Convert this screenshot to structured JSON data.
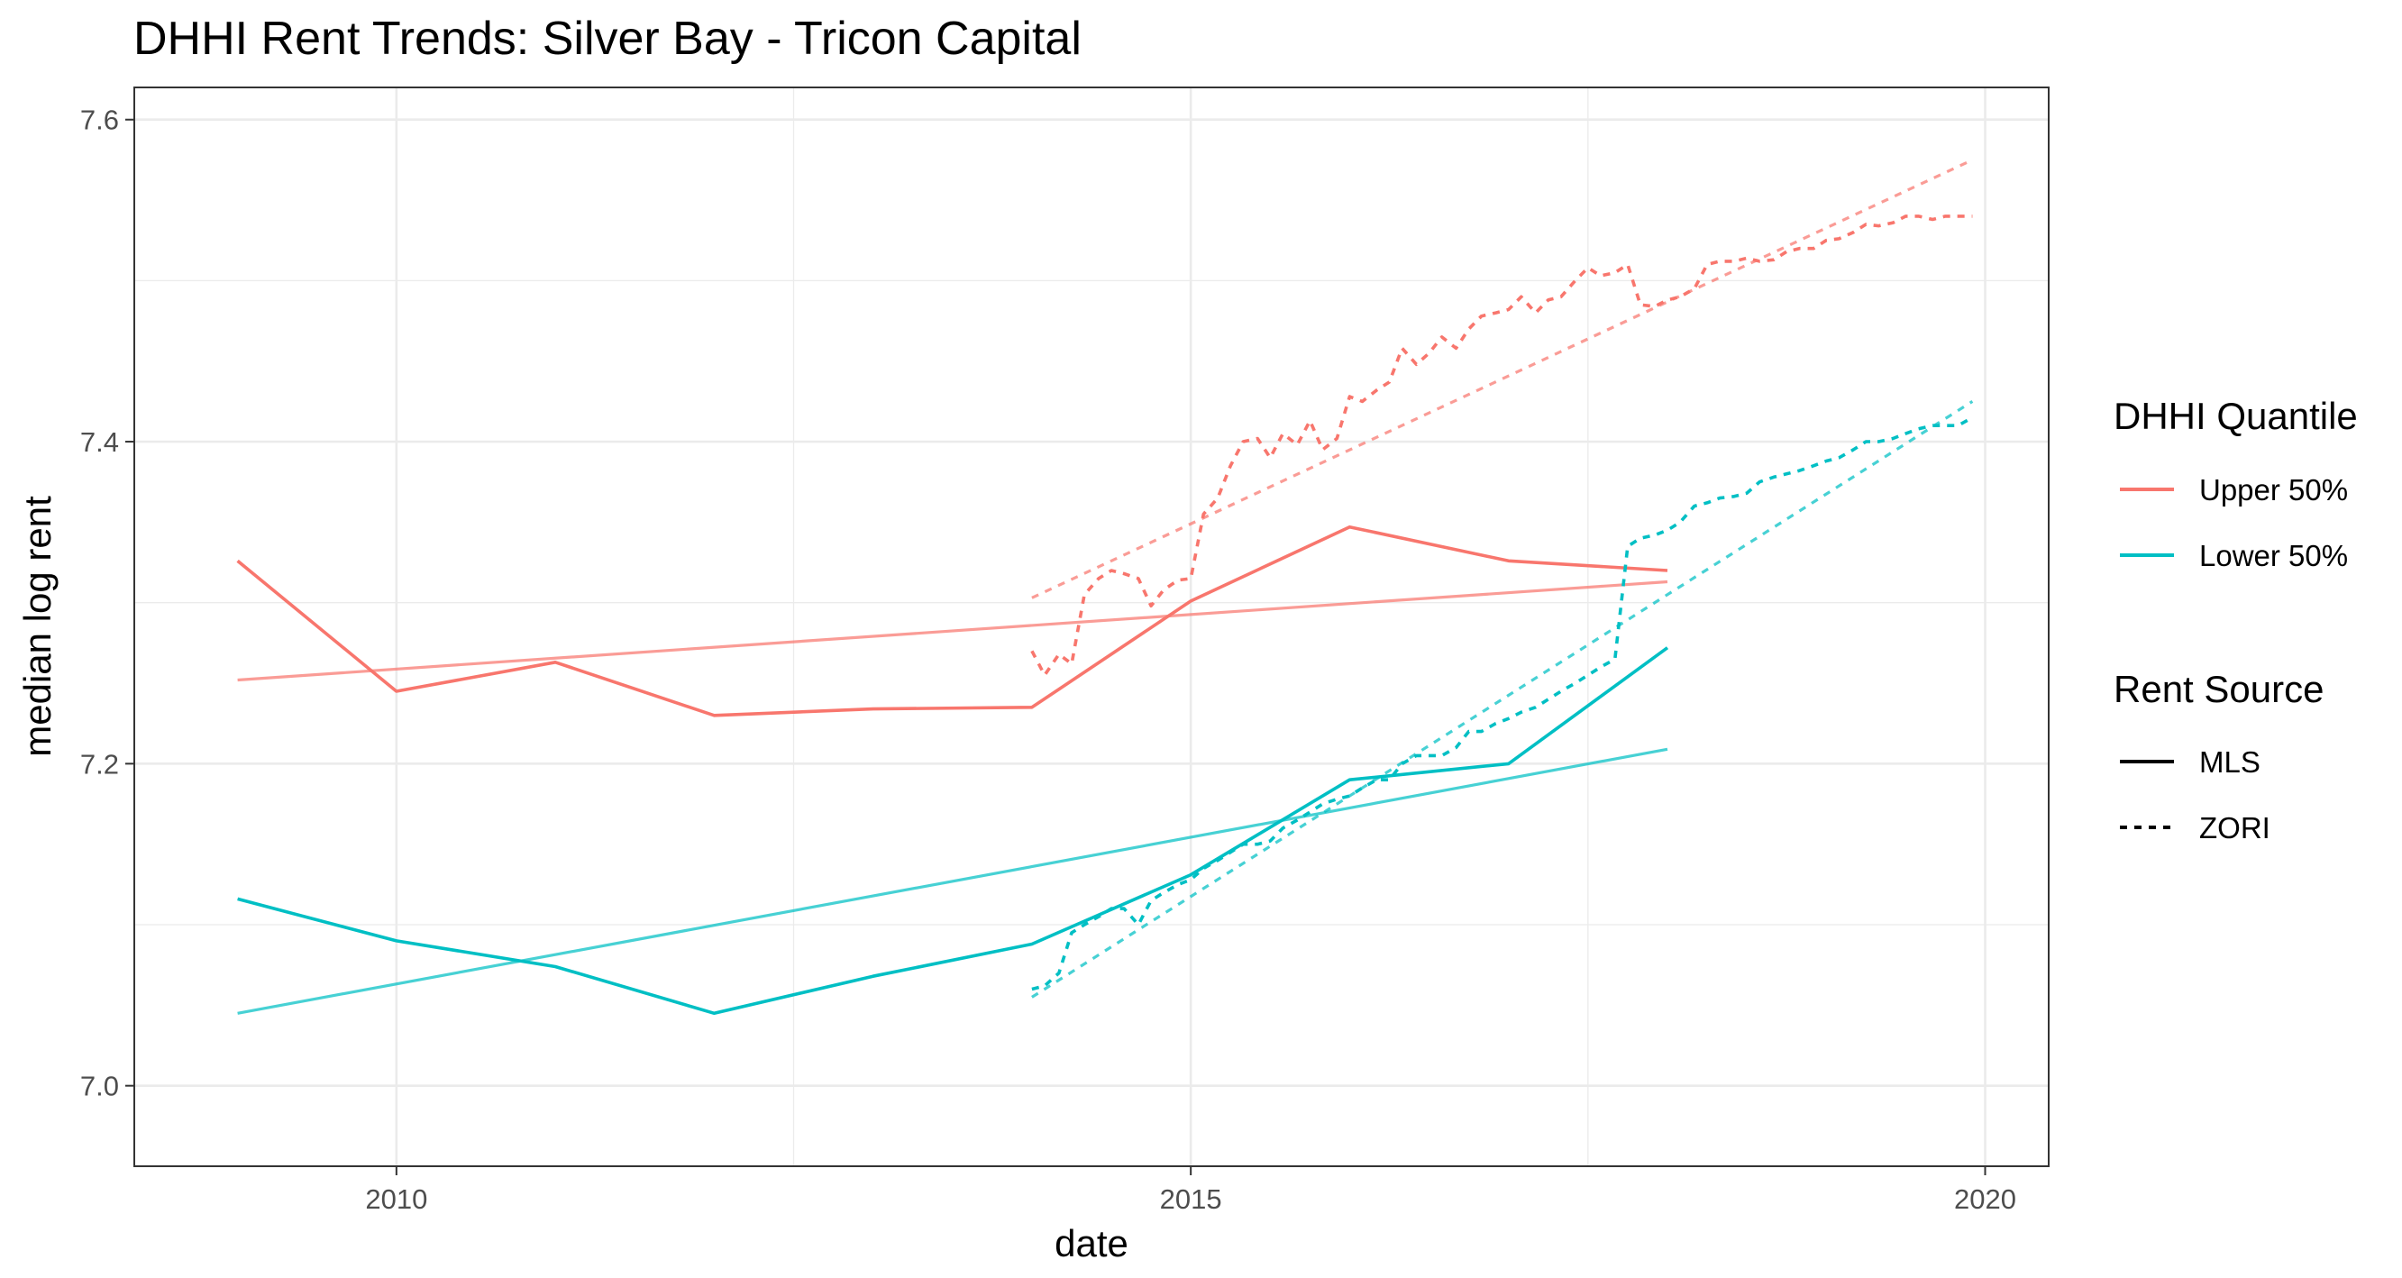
{
  "chart_data": {
    "type": "line",
    "title": "DHHI Rent Trends: Silver Bay - Tricon Capital",
    "xlabel": "date",
    "ylabel": "median log rent",
    "xlim": [
      2008.35,
      2020.4
    ],
    "ylim": [
      6.95,
      7.62
    ],
    "x_ticks": [
      2010,
      2015,
      2020
    ],
    "x_tick_labels": [
      "2010",
      "2015",
      "2020"
    ],
    "y_ticks": [
      7.0,
      7.2,
      7.4,
      7.6
    ],
    "y_tick_labels": [
      "7.0",
      "7.2",
      "7.4",
      "7.6"
    ],
    "grid": true,
    "legend_position": "right",
    "legends": [
      {
        "title": "DHHI Quantile",
        "entries": [
          {
            "label": "Upper 50%",
            "color": "#F8766D"
          },
          {
            "label": "Lower 50%",
            "color": "#00BFC4"
          }
        ]
      },
      {
        "title": "Rent Source",
        "entries": [
          {
            "label": "MLS",
            "linetype": "solid"
          },
          {
            "label": "ZORI",
            "linetype": "dashed"
          }
        ]
      }
    ],
    "series": [
      {
        "quantile": "Upper 50%",
        "source": "MLS",
        "color": "#F8766D",
        "x": [
          2009,
          2010,
          2011,
          2012,
          2013,
          2014,
          2015,
          2016,
          2017,
          2018
        ],
        "y": [
          7.326,
          7.245,
          7.263,
          7.23,
          7.234,
          7.235,
          7.301,
          7.347,
          7.326,
          7.32
        ]
      },
      {
        "quantile": "Lower 50%",
        "source": "MLS",
        "color": "#00BFC4",
        "x": [
          2009,
          2010,
          2011,
          2012,
          2013,
          2014,
          2015,
          2016,
          2017,
          2018
        ],
        "y": [
          7.116,
          7.09,
          7.074,
          7.045,
          7.068,
          7.088,
          7.131,
          7.19,
          7.2,
          7.272
        ]
      },
      {
        "quantile": "Upper 50%",
        "source": "ZORI",
        "color": "#F8766D",
        "x": [
          2014.0,
          2014.08,
          2014.17,
          2014.25,
          2014.33,
          2014.42,
          2014.5,
          2014.58,
          2014.67,
          2014.75,
          2014.83,
          2014.92,
          2015.0,
          2015.08,
          2015.17,
          2015.25,
          2015.33,
          2015.42,
          2015.5,
          2015.58,
          2015.67,
          2015.75,
          2015.83,
          2015.92,
          2016.0,
          2016.08,
          2016.17,
          2016.25,
          2016.33,
          2016.42,
          2016.5,
          2016.58,
          2016.67,
          2016.75,
          2016.83,
          2016.92,
          2017.0,
          2017.08,
          2017.17,
          2017.25,
          2017.33,
          2017.42,
          2017.5,
          2017.58,
          2017.67,
          2017.75,
          2017.83,
          2017.92,
          2018.0,
          2018.08,
          2018.17,
          2018.25,
          2018.33,
          2018.42,
          2018.5,
          2018.58,
          2018.67,
          2018.75,
          2018.83,
          2018.92,
          2019.0,
          2019.08,
          2019.17,
          2019.25,
          2019.33,
          2019.42,
          2019.5,
          2019.58,
          2019.67,
          2019.75,
          2019.83,
          2019.92
        ],
        "y": [
          7.27,
          7.255,
          7.268,
          7.262,
          7.305,
          7.315,
          7.32,
          7.318,
          7.315,
          7.298,
          7.308,
          7.314,
          7.315,
          7.355,
          7.365,
          7.385,
          7.4,
          7.402,
          7.39,
          7.405,
          7.398,
          7.413,
          7.395,
          7.402,
          7.428,
          7.425,
          7.432,
          7.437,
          7.458,
          7.448,
          7.455,
          7.465,
          7.458,
          7.47,
          7.478,
          7.48,
          7.482,
          7.49,
          7.48,
          7.488,
          7.49,
          7.5,
          7.508,
          7.503,
          7.505,
          7.51,
          7.485,
          7.484,
          7.488,
          7.49,
          7.495,
          7.51,
          7.512,
          7.512,
          7.514,
          7.512,
          7.513,
          7.518,
          7.52,
          7.52,
          7.525,
          7.526,
          7.53,
          7.535,
          7.534,
          7.536,
          7.54,
          7.54,
          7.538,
          7.54,
          7.54,
          7.54
        ]
      },
      {
        "quantile": "Lower 50%",
        "source": "ZORI",
        "color": "#00BFC4",
        "x": [
          2014.0,
          2014.08,
          2014.17,
          2014.25,
          2014.33,
          2014.42,
          2014.5,
          2014.58,
          2014.67,
          2014.75,
          2014.83,
          2014.92,
          2015.0,
          2015.08,
          2015.17,
          2015.25,
          2015.33,
          2015.42,
          2015.5,
          2015.58,
          2015.67,
          2015.75,
          2015.83,
          2015.92,
          2016.0,
          2016.08,
          2016.17,
          2016.25,
          2016.33,
          2016.42,
          2016.5,
          2016.58,
          2016.67,
          2016.75,
          2016.83,
          2016.92,
          2017.0,
          2017.08,
          2017.17,
          2017.25,
          2017.33,
          2017.42,
          2017.5,
          2017.58,
          2017.67,
          2017.75,
          2017.83,
          2017.92,
          2018.0,
          2018.08,
          2018.17,
          2018.25,
          2018.33,
          2018.42,
          2018.5,
          2018.58,
          2018.67,
          2018.75,
          2018.83,
          2018.92,
          2019.0,
          2019.08,
          2019.17,
          2019.25,
          2019.33,
          2019.42,
          2019.5,
          2019.58,
          2019.67,
          2019.75,
          2019.83,
          2019.92
        ],
        "y": [
          7.06,
          7.062,
          7.07,
          7.095,
          7.1,
          7.105,
          7.11,
          7.11,
          7.1,
          7.115,
          7.12,
          7.125,
          7.128,
          7.135,
          7.14,
          7.145,
          7.15,
          7.15,
          7.152,
          7.16,
          7.165,
          7.17,
          7.175,
          7.178,
          7.18,
          7.185,
          7.19,
          7.19,
          7.2,
          7.205,
          7.205,
          7.205,
          7.21,
          7.22,
          7.22,
          7.225,
          7.228,
          7.232,
          7.235,
          7.24,
          7.245,
          7.25,
          7.255,
          7.26,
          7.265,
          7.335,
          7.34,
          7.342,
          7.345,
          7.35,
          7.36,
          7.362,
          7.365,
          7.366,
          7.368,
          7.375,
          7.378,
          7.38,
          7.382,
          7.385,
          7.388,
          7.39,
          7.395,
          7.4,
          7.4,
          7.402,
          7.405,
          7.408,
          7.41,
          7.41,
          7.41,
          7.415
        ]
      },
      {
        "quantile": "Upper 50%",
        "source": "MLS",
        "kind": "trend",
        "color": "#F8766D",
        "x": [
          2009,
          2018
        ],
        "y": [
          7.252,
          7.313
        ]
      },
      {
        "quantile": "Lower 50%",
        "source": "MLS",
        "kind": "trend",
        "color": "#00BFC4",
        "x": [
          2009,
          2018
        ],
        "y": [
          7.045,
          7.209
        ]
      },
      {
        "quantile": "Upper 50%",
        "source": "ZORI",
        "kind": "trend",
        "color": "#F8766D",
        "x": [
          2014,
          2019.92
        ],
        "y": [
          7.303,
          7.575
        ]
      },
      {
        "quantile": "Lower 50%",
        "source": "ZORI",
        "kind": "trend",
        "color": "#00BFC4",
        "x": [
          2014,
          2019.92
        ],
        "y": [
          7.055,
          7.425
        ]
      }
    ]
  }
}
